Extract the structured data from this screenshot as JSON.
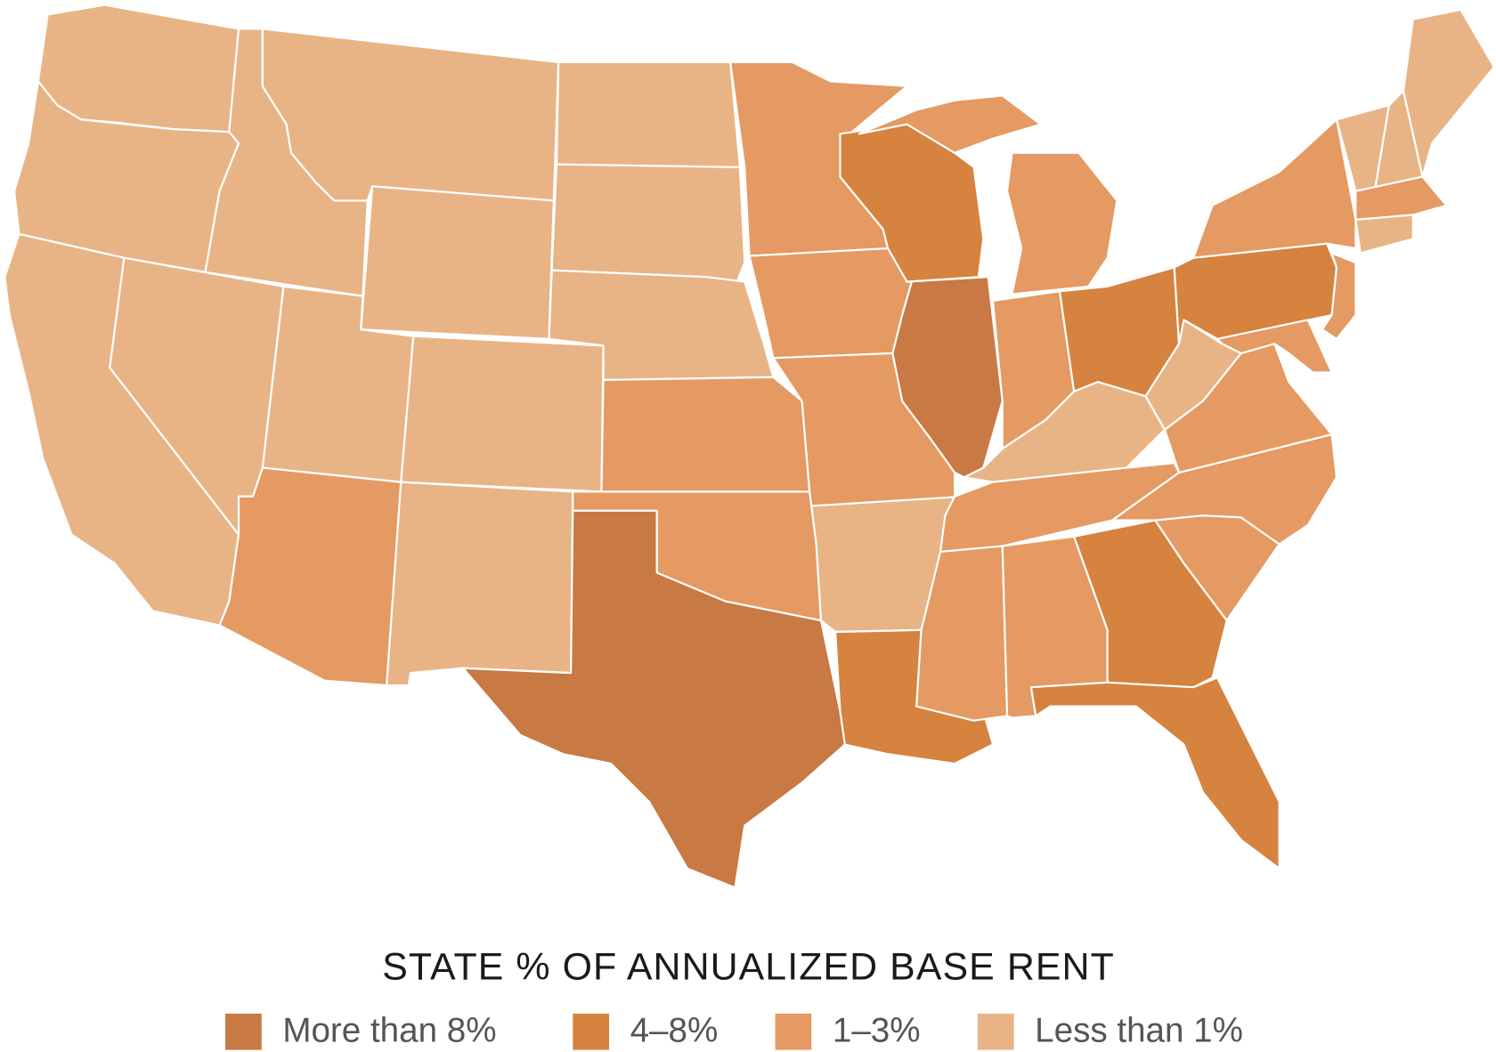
{
  "legend": {
    "title": "STATE % OF ANNUALIZED BASE RENT",
    "items": [
      {
        "label": "More than 8%",
        "color": "#c87944"
      },
      {
        "label": "4–8%",
        "color": "#d5833f"
      },
      {
        "label": "1–3%",
        "color": "#e49a62"
      },
      {
        "label": "Less than 1%",
        "color": "#e8b486"
      }
    ]
  }
}
